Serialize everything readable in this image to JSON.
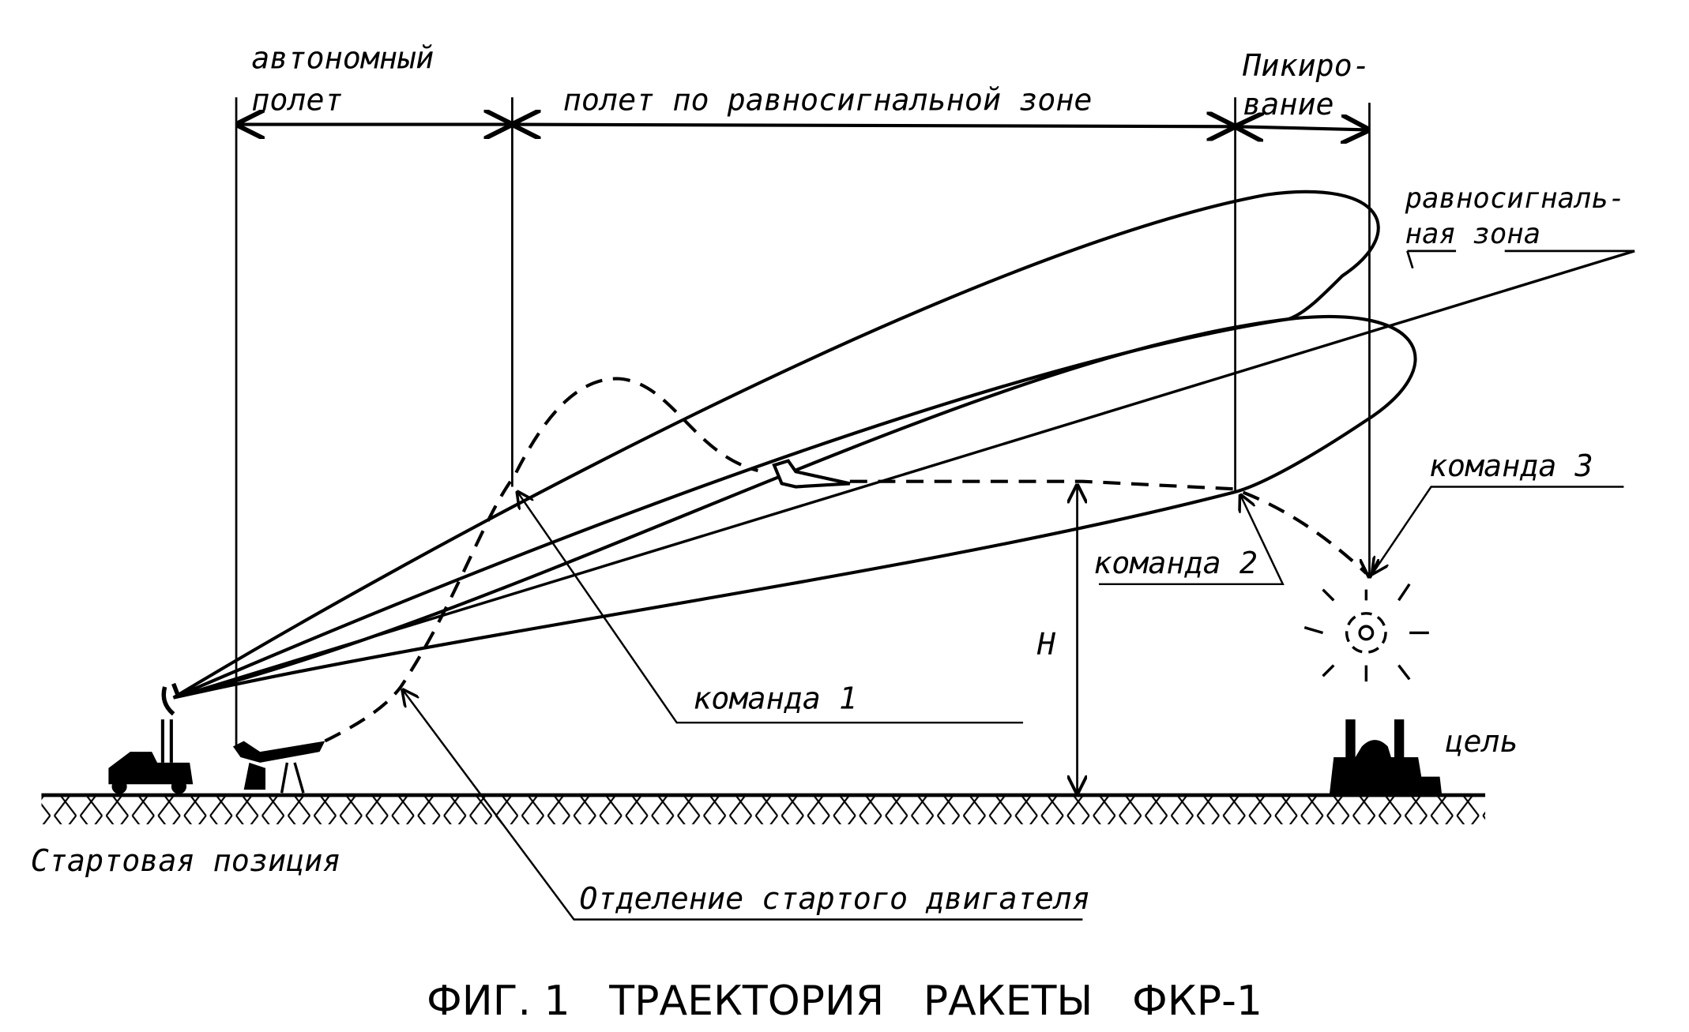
{
  "labels": {
    "autonomous_1": "автономный",
    "autonomous_2": "полет",
    "equisignal_flight": "полет по равносигнальной зоне",
    "dive_1": "Пикиро-",
    "dive_2": "вание",
    "equisignal_zone_1": "равносигналь-",
    "equisignal_zone_2": "ная  зона",
    "command_1": "команда 1",
    "command_2": "команда 2",
    "command_3": "команда 3",
    "height": "H",
    "target": "цель",
    "launch_position": "Стартовая позиция",
    "booster_separation": "Отделение стартого двигателя"
  },
  "caption": "ФИГ. 1   ТРАЕКТОРИЯ   РАКЕТЫ   ФКР-1",
  "colors": {
    "ink": "#000000",
    "paper": "#ffffff"
  }
}
